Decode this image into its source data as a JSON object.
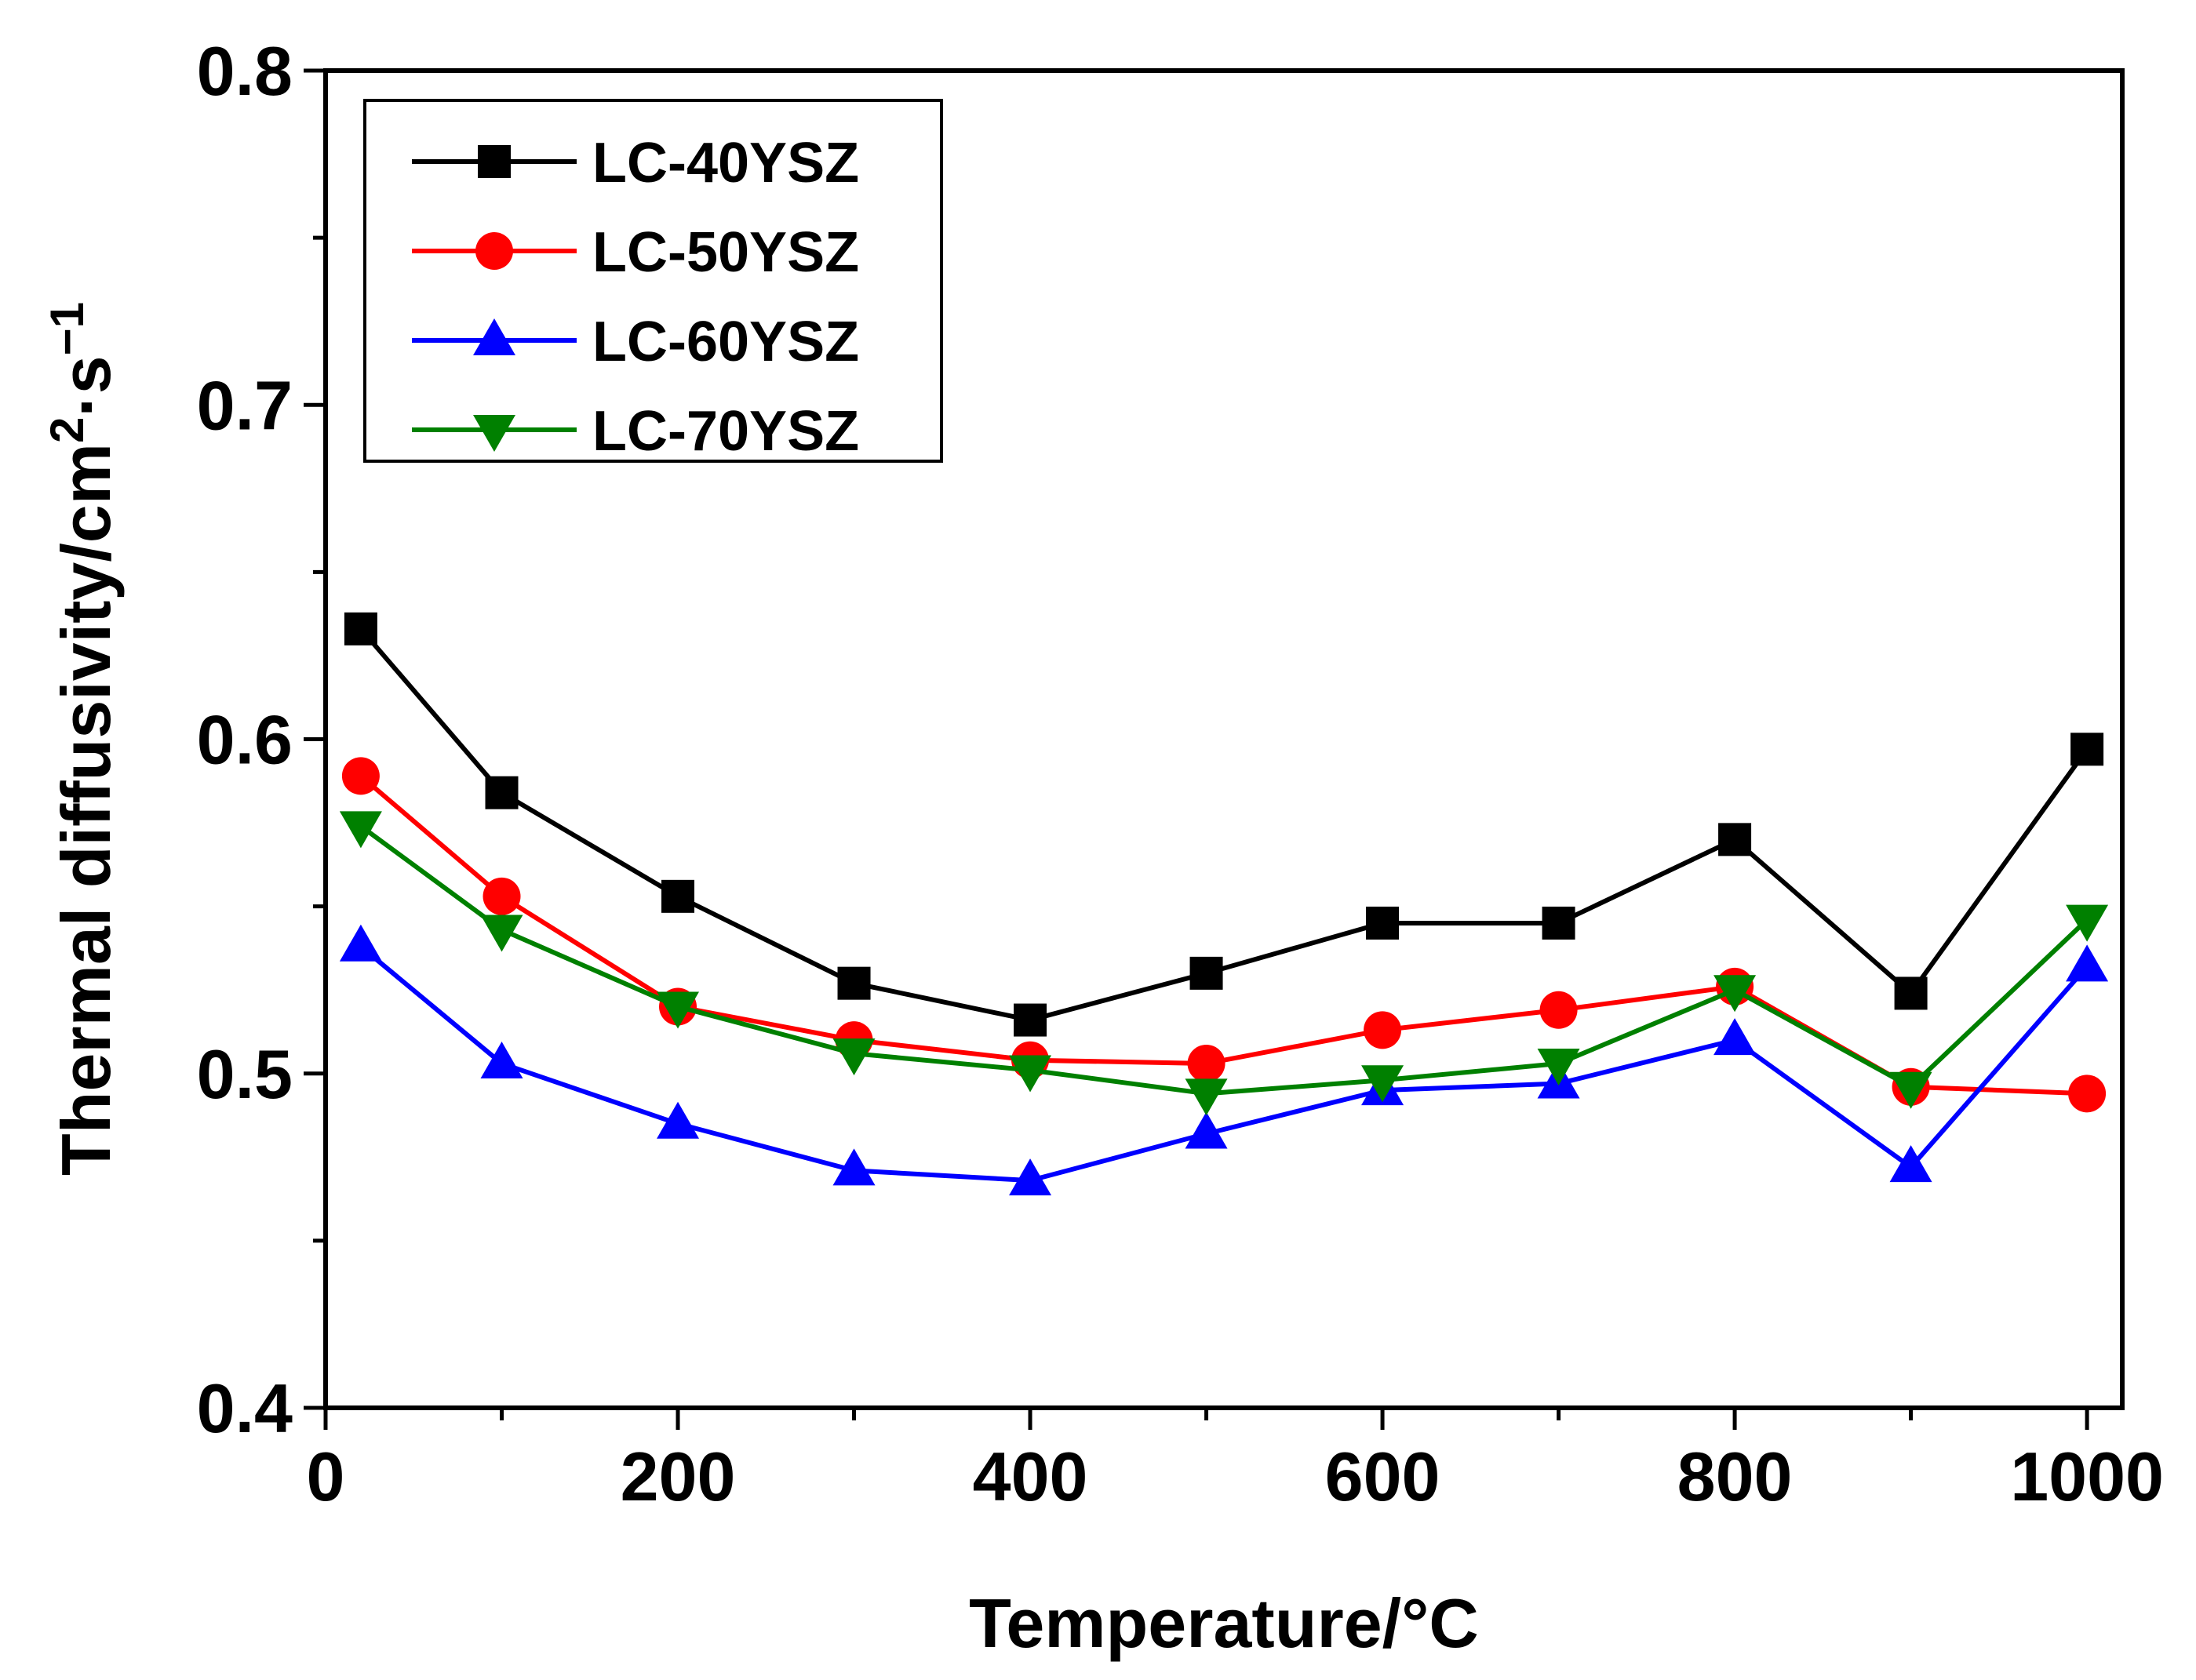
{
  "chart_data": {
    "type": "line",
    "title": "",
    "xlabel": "Temperature/°C",
    "ylabel": {
      "base": "Thermal diffusivity/cm",
      "sup1": "2",
      "mid": "·s",
      "sup2": "−1"
    },
    "xlim": [
      0,
      1020
    ],
    "ylim": [
      0.4,
      0.8
    ],
    "x_ticks": [
      0,
      200,
      400,
      600,
      800,
      1000
    ],
    "x_tick_labels": [
      "0",
      "200",
      "400",
      "600",
      "800",
      "1000"
    ],
    "y_ticks": [
      0.4,
      0.5,
      0.6,
      0.7,
      0.8
    ],
    "y_tick_labels": [
      "0.4",
      "0.5",
      "0.6",
      "0.7",
      "0.8"
    ],
    "legend_position": "top-left",
    "x": [
      20,
      100,
      200,
      300,
      400,
      500,
      600,
      700,
      800,
      900,
      1000
    ],
    "series": [
      {
        "name": "LC-40YSZ",
        "color": "#000000",
        "marker": "square",
        "values": [
          0.633,
          0.584,
          0.553,
          0.527,
          0.516,
          0.53,
          0.545,
          0.545,
          0.57,
          0.524,
          0.597
        ]
      },
      {
        "name": "LC-50YSZ",
        "color": "#ff0000",
        "marker": "circle",
        "values": [
          0.589,
          0.553,
          0.52,
          0.51,
          0.504,
          0.503,
          0.513,
          0.519,
          0.526,
          0.496,
          0.494
        ]
      },
      {
        "name": "LC-60YSZ",
        "color": "#0000ff",
        "marker": "triangle-up",
        "values": [
          0.538,
          0.503,
          0.485,
          0.471,
          0.468,
          0.482,
          0.495,
          0.497,
          0.51,
          0.472,
          0.532
        ]
      },
      {
        "name": "LC-70YSZ",
        "color": "#008000",
        "marker": "triangle-down",
        "values": [
          0.574,
          0.543,
          0.52,
          0.506,
          0.501,
          0.494,
          0.498,
          0.503,
          0.525,
          0.496,
          0.546
        ]
      }
    ]
  }
}
